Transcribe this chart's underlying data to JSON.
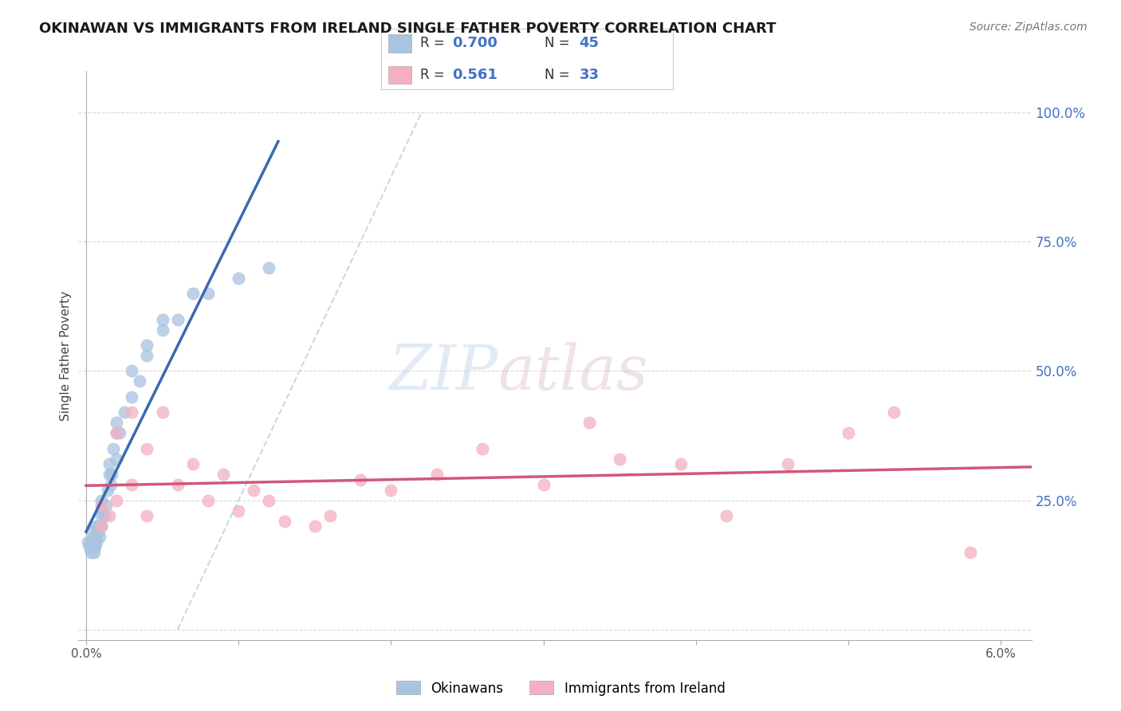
{
  "title": "OKINAWAN VS IMMIGRANTS FROM IRELAND SINGLE FATHER POVERTY CORRELATION CHART",
  "source": "Source: ZipAtlas.com",
  "ylabel": "Single Father Poverty",
  "y_ticks": [
    0.0,
    0.25,
    0.5,
    0.75,
    1.0
  ],
  "y_tick_labels": [
    "",
    "25.0%",
    "50.0%",
    "75.0%",
    "100.0%"
  ],
  "x_lim": [
    -0.0005,
    0.062
  ],
  "y_lim": [
    -0.02,
    1.08
  ],
  "series1": {
    "name": "Okinawans",
    "R": 0.7,
    "N": 45,
    "color": "#a8c4e0",
    "line_color": "#3a6ab0"
  },
  "series2": {
    "name": "Immigrants from Ireland",
    "R": 0.561,
    "N": 33,
    "color": "#f4b0c0",
    "line_color": "#d05878"
  },
  "background_color": "#ffffff",
  "grid_color": "#d0d0d0",
  "okin_x": [
    0.0001,
    0.0002,
    0.0003,
    0.0003,
    0.0004,
    0.0004,
    0.0005,
    0.0005,
    0.0005,
    0.0006,
    0.0006,
    0.0007,
    0.0007,
    0.0008,
    0.0008,
    0.0009,
    0.001,
    0.001,
    0.001,
    0.001,
    0.0012,
    0.0013,
    0.0014,
    0.0015,
    0.0015,
    0.0016,
    0.0017,
    0.0018,
    0.002,
    0.002,
    0.002,
    0.0022,
    0.0025,
    0.003,
    0.003,
    0.0035,
    0.004,
    0.004,
    0.005,
    0.005,
    0.006,
    0.007,
    0.008,
    0.01,
    0.012
  ],
  "okin_y": [
    0.17,
    0.16,
    0.15,
    0.17,
    0.17,
    0.19,
    0.15,
    0.16,
    0.17,
    0.16,
    0.18,
    0.17,
    0.2,
    0.19,
    0.2,
    0.18,
    0.2,
    0.22,
    0.23,
    0.25,
    0.22,
    0.24,
    0.27,
    0.3,
    0.32,
    0.28,
    0.3,
    0.35,
    0.33,
    0.38,
    0.4,
    0.38,
    0.42,
    0.45,
    0.5,
    0.48,
    0.53,
    0.55,
    0.58,
    0.6,
    0.6,
    0.65,
    0.65,
    0.68,
    0.7
  ],
  "ire_x": [
    0.001,
    0.001,
    0.0015,
    0.002,
    0.002,
    0.003,
    0.003,
    0.004,
    0.004,
    0.005,
    0.006,
    0.007,
    0.008,
    0.009,
    0.01,
    0.011,
    0.012,
    0.013,
    0.015,
    0.016,
    0.018,
    0.02,
    0.023,
    0.026,
    0.03,
    0.033,
    0.035,
    0.039,
    0.042,
    0.046,
    0.05,
    0.053,
    0.058
  ],
  "ire_y": [
    0.2,
    0.24,
    0.22,
    0.25,
    0.38,
    0.42,
    0.28,
    0.35,
    0.22,
    0.42,
    0.28,
    0.32,
    0.25,
    0.3,
    0.23,
    0.27,
    0.25,
    0.21,
    0.2,
    0.22,
    0.29,
    0.27,
    0.3,
    0.35,
    0.28,
    0.4,
    0.33,
    0.32,
    0.22,
    0.32,
    0.38,
    0.42,
    0.15
  ]
}
